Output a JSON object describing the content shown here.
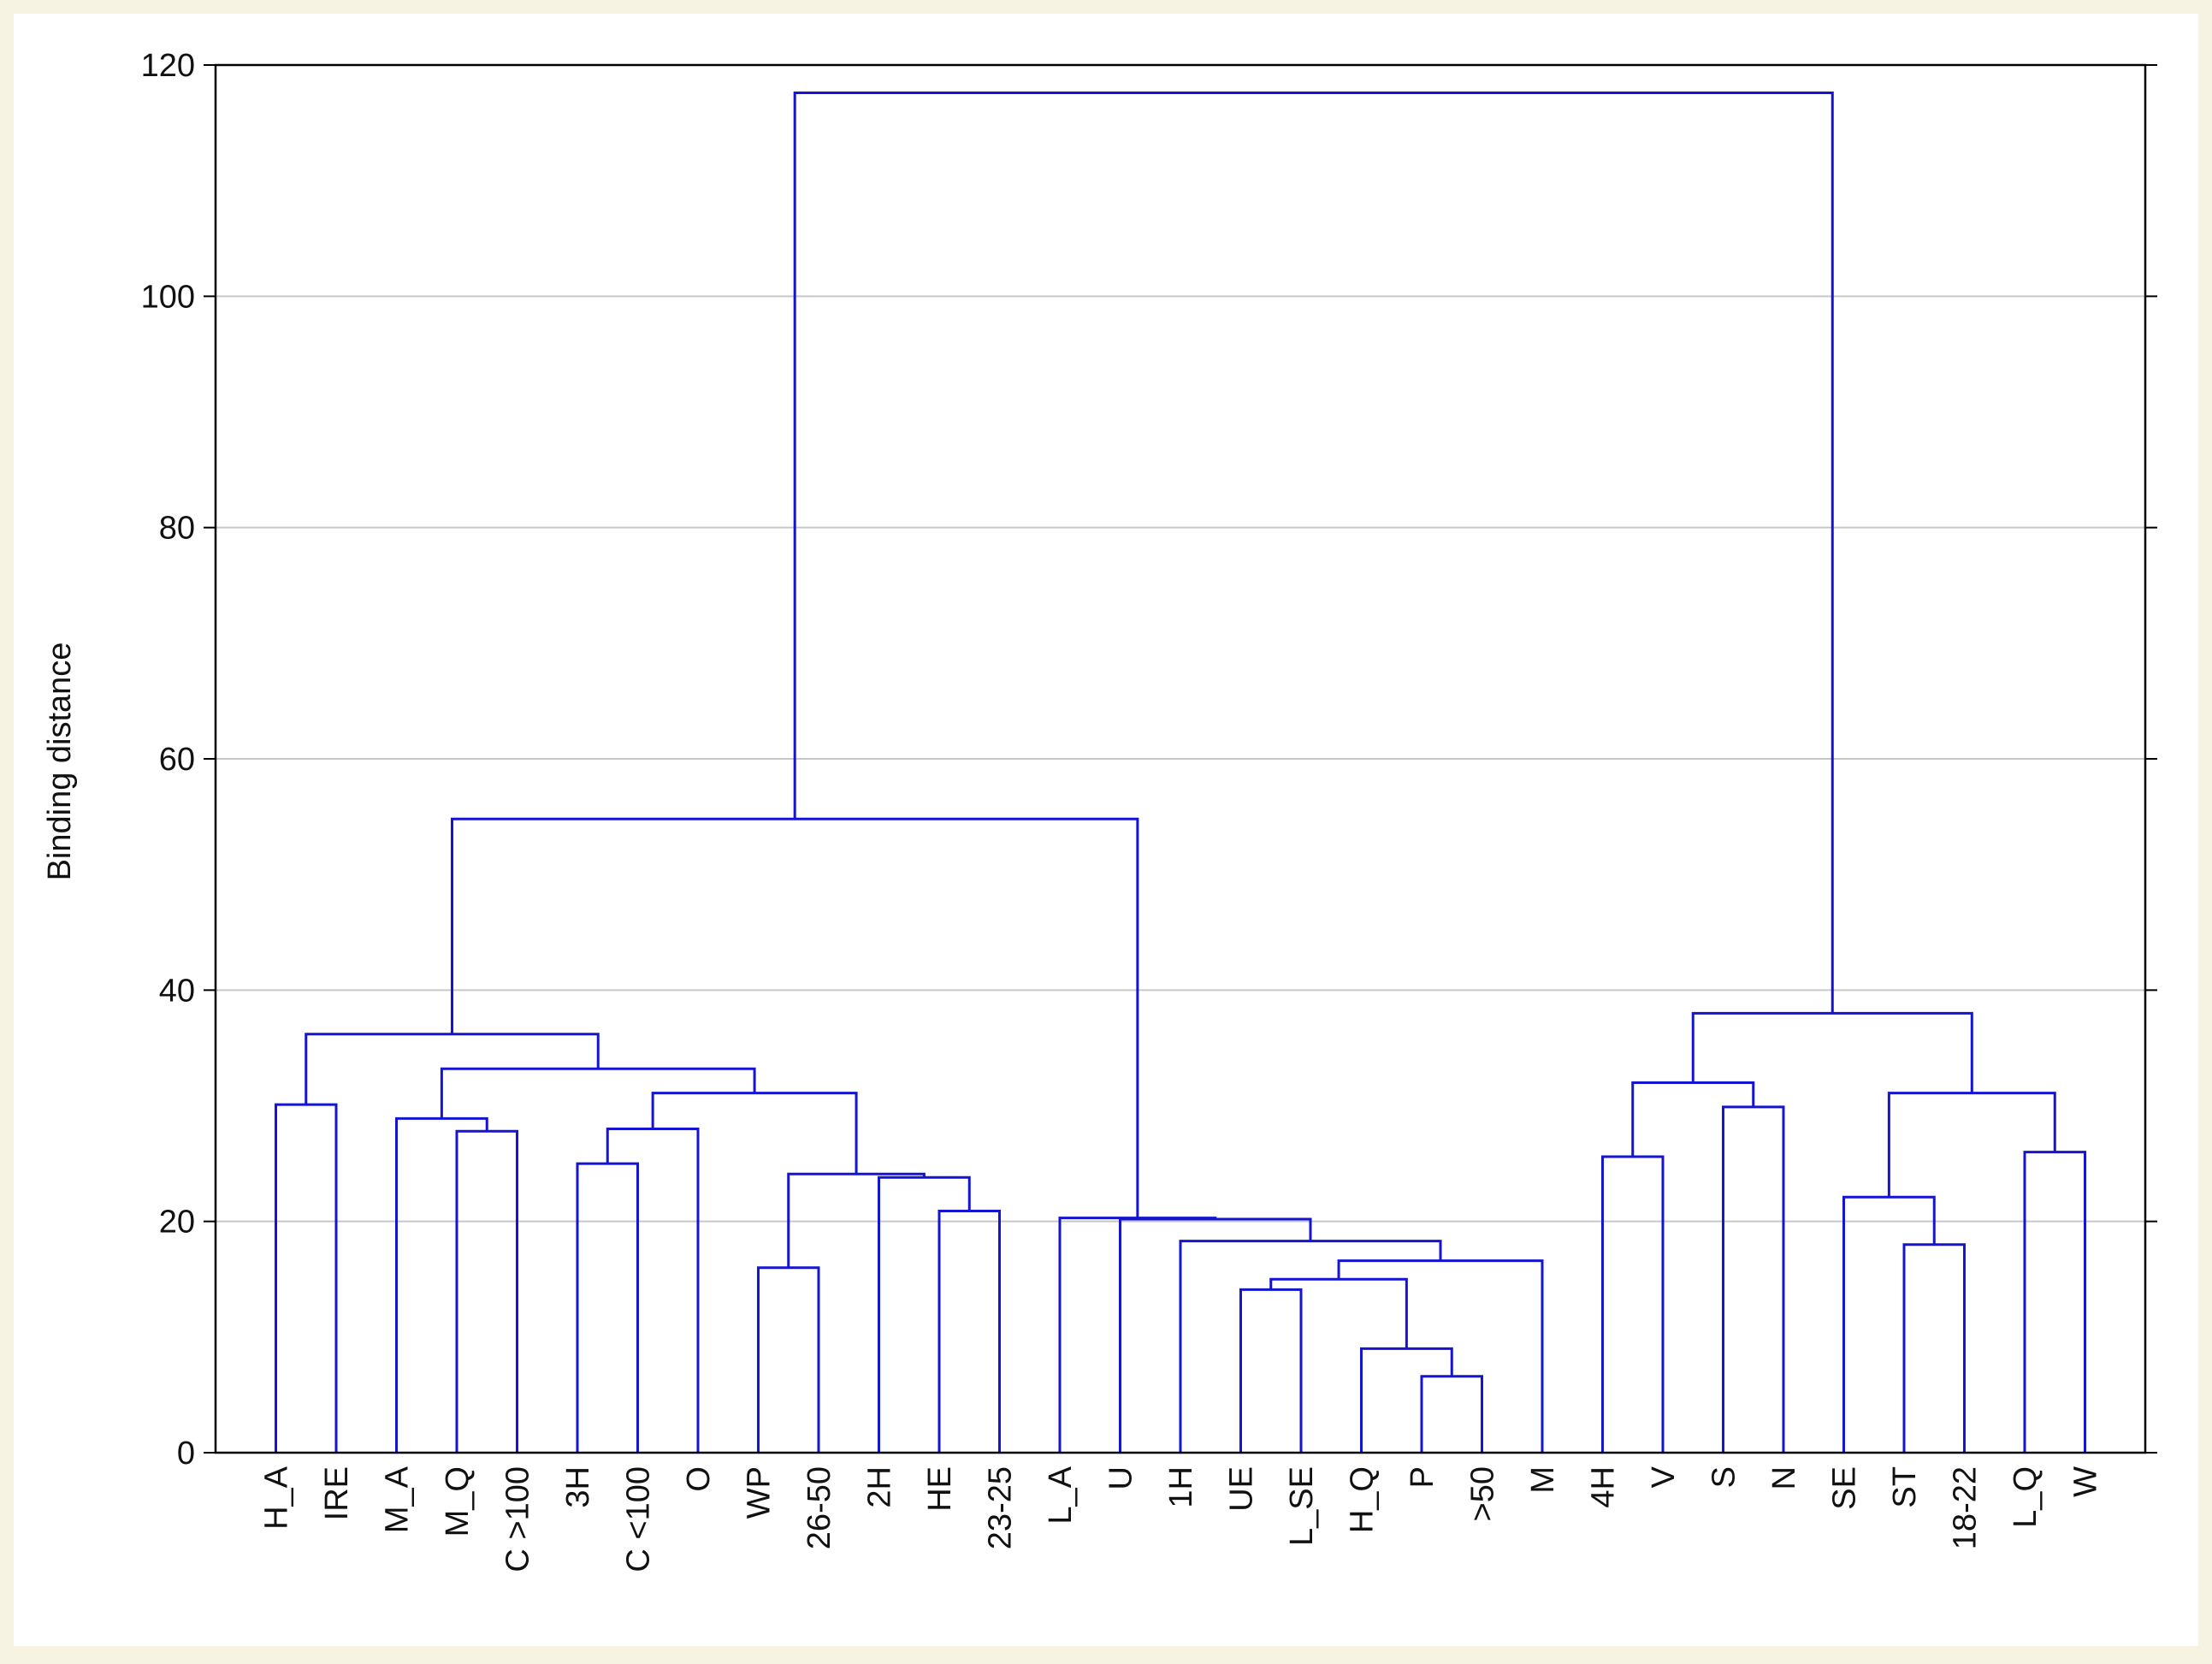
{
  "chart_data": {
    "type": "dendrogram",
    "y_label": "Binding distance",
    "color": "#1414d2",
    "ylim": [
      0,
      120
    ],
    "yticks": [
      0,
      20,
      40,
      60,
      80,
      100,
      120
    ],
    "grid": true,
    "tree": {
      "height": 117.6,
      "children": [
        {
          "height": 54.8,
          "children": [
            {
              "height": 36.2,
              "children": [
                {
                  "height": 30.1,
                  "children": [
                    "H_A",
                    "IRE"
                  ]
                },
                {
                  "height": 33.2,
                  "children": [
                    {
                      "height": 28.9,
                      "children": [
                        "M_A",
                        {
                          "height": 27.8,
                          "children": [
                            "M_Q",
                            "C >100"
                          ]
                        }
                      ]
                    },
                    {
                      "height": 31.1,
                      "children": [
                        {
                          "height": 28.0,
                          "children": [
                            {
                              "height": 25.0,
                              "children": [
                                "3H",
                                "C <100"
                              ]
                            },
                            "O"
                          ]
                        },
                        {
                          "height": 24.1,
                          "children": [
                            {
                              "height": 16.0,
                              "children": [
                                "WP",
                                "26-50"
                              ]
                            },
                            {
                              "height": 23.8,
                              "children": [
                                "2H",
                                {
                                  "height": 20.9,
                                  "children": [
                                    "HE",
                                    "23-25"
                                  ]
                                }
                              ]
                            }
                          ]
                        }
                      ]
                    }
                  ]
                }
              ]
            },
            {
              "height": 20.3,
              "children": [
                "L_A",
                {
                  "height": 20.2,
                  "children": [
                    "U",
                    {
                      "height": 18.3,
                      "children": [
                        "1H",
                        {
                          "height": 16.6,
                          "children": [
                            {
                              "height": 15.0,
                              "children": [
                                {
                                  "height": 14.1,
                                  "children": [
                                    "UE",
                                    "L_SE"
                                  ]
                                },
                                {
                                  "height": 9.0,
                                  "children": [
                                    "H_Q",
                                    {
                                      "height": 6.6,
                                      "children": [
                                        "P",
                                        ">50"
                                      ]
                                    }
                                  ]
                                }
                              ]
                            },
                            "M"
                          ]
                        }
                      ]
                    }
                  ]
                }
              ]
            }
          ]
        },
        {
          "height": 38.0,
          "children": [
            {
              "height": 32.0,
              "children": [
                {
                  "height": 25.6,
                  "children": [
                    "4H",
                    "V"
                  ]
                },
                {
                  "height": 29.9,
                  "children": [
                    "S",
                    "N"
                  ]
                }
              ]
            },
            {
              "height": 31.1,
              "children": [
                {
                  "height": 22.1,
                  "children": [
                    "SE",
                    {
                      "height": 18.0,
                      "children": [
                        "ST",
                        "18-22"
                      ]
                    }
                  ]
                },
                {
                  "height": 26.0,
                  "children": [
                    "L_Q",
                    "W"
                  ]
                }
              ]
            }
          ]
        }
      ]
    }
  }
}
